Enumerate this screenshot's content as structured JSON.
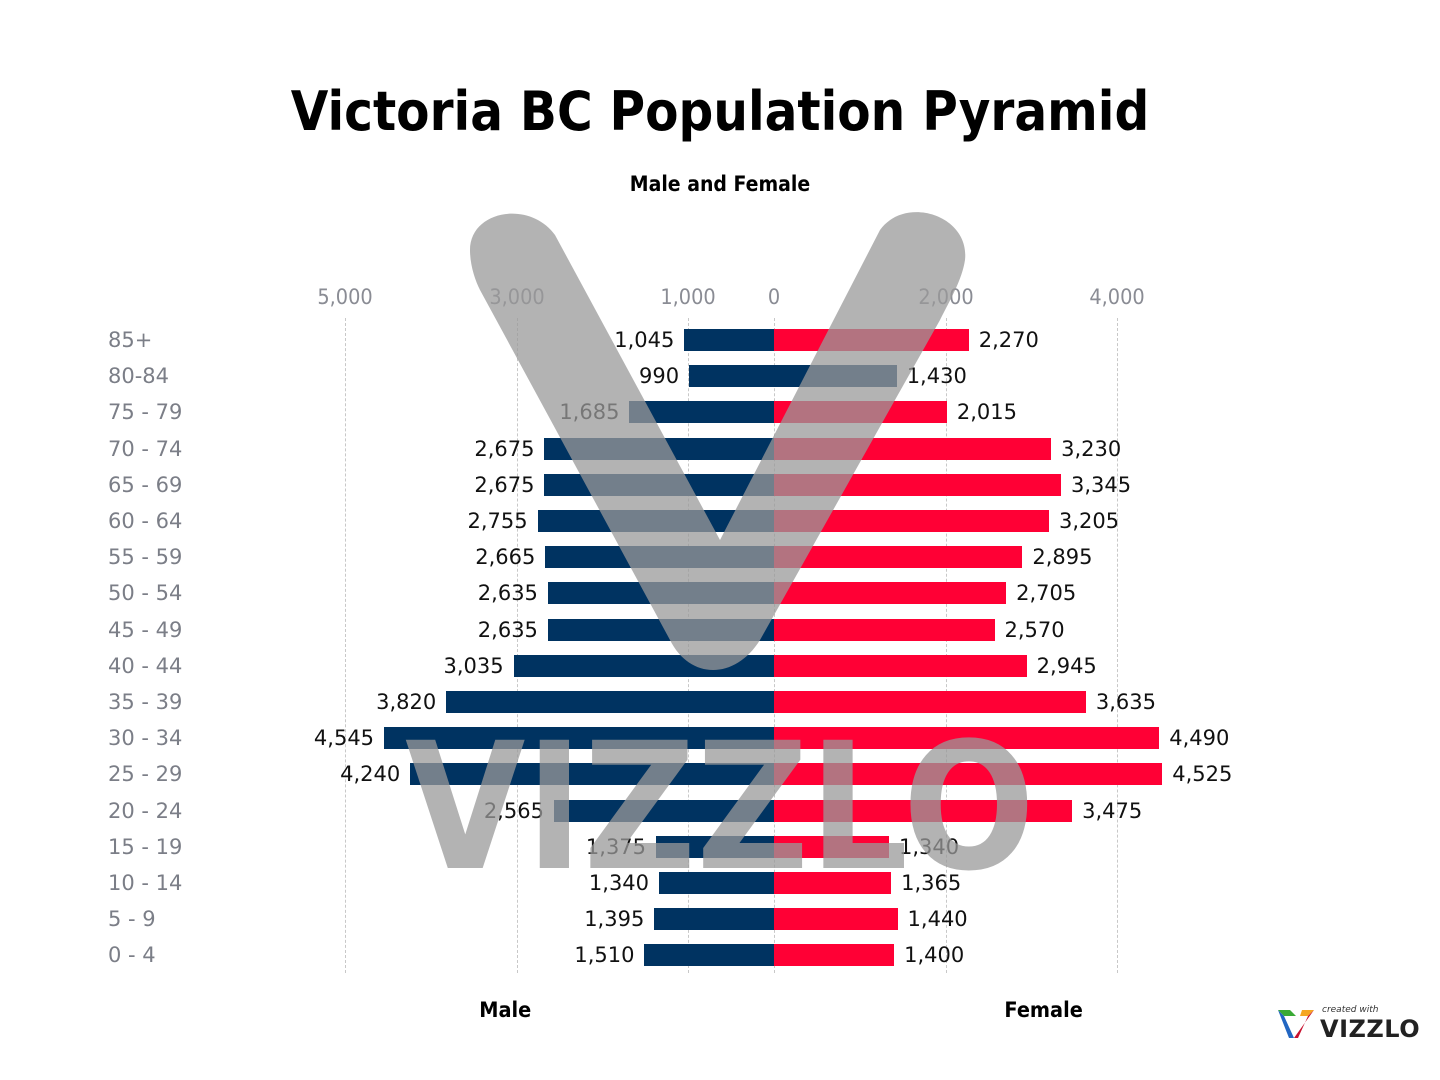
{
  "title": "Victoria BC Population Pyramid",
  "subtitle": "Male and Female",
  "axis": {
    "tick_labels": [
      {
        "label": "5,000",
        "offset": -5000
      },
      {
        "label": "3,000",
        "offset": -3000
      },
      {
        "label": "1,000",
        "offset": -1000
      },
      {
        "label": "0",
        "offset": 0
      },
      {
        "label": "2,000",
        "offset": 2000
      },
      {
        "label": "4,000",
        "offset": 4000
      }
    ],
    "left_name": "Male",
    "right_name": "Female"
  },
  "colors": {
    "male": "#003361",
    "female": "#ff0035",
    "female_80_84": "#003361",
    "age_label": "#7b7e87",
    "tick_label": "#8a8c94"
  },
  "brand": {
    "small": "created with",
    "big": "VIZZLO"
  },
  "watermark": "VIZZLO",
  "chart_data": {
    "type": "bar",
    "subtype": "population-pyramid",
    "title": "Victoria BC Population Pyramid",
    "subtitle": "Male and Female",
    "categories": [
      "85+",
      "80-84",
      "75 - 79",
      "70 - 74",
      "65 - 69",
      "60 - 64",
      "55 - 59",
      "50 - 54",
      "45 - 49",
      "40 - 44",
      "35 - 39",
      "30 - 34",
      "25 - 29",
      "20 - 24",
      "15 - 19",
      "10 - 14",
      "5 - 9",
      "0 - 4"
    ],
    "series": [
      {
        "name": "Male",
        "side": "left",
        "color": "#003361",
        "values": [
          1045,
          990,
          1685,
          2675,
          2675,
          2755,
          2665,
          2635,
          2635,
          3035,
          3820,
          4545,
          4240,
          2565,
          1375,
          1340,
          1395,
          1510
        ],
        "labels": [
          "1,045",
          "990",
          "1,685",
          "2,675",
          "2,675",
          "2,755",
          "2,665",
          "2,635",
          "2,635",
          "3,035",
          "3,820",
          "4,545",
          "4,240",
          "2,565",
          "1,375",
          "1,340",
          "1,395",
          "1,510"
        ]
      },
      {
        "name": "Female",
        "side": "right",
        "color": "#ff0035",
        "values": [
          2270,
          1430,
          2015,
          3230,
          3345,
          3205,
          2895,
          2705,
          2570,
          2945,
          3635,
          4490,
          4525,
          3475,
          1340,
          1365,
          1440,
          1400
        ],
        "labels": [
          "2,270",
          "1,430",
          "2,015",
          "3,230",
          "3,345",
          "3,205",
          "2,895",
          "2,705",
          "2,570",
          "2,945",
          "3,635",
          "4,490",
          "4,525",
          "3,475",
          "1,340",
          "1,365",
          "1,440",
          "1,400"
        ]
      }
    ],
    "xlabel_left": "Male",
    "xlabel_right": "Female",
    "x_tick_labels": [
      "5,000",
      "3,000",
      "1,000",
      "0",
      "2,000",
      "4,000"
    ],
    "xlim": [
      -5000,
      4500
    ],
    "grid": "vertical dashed",
    "legend": "none"
  }
}
